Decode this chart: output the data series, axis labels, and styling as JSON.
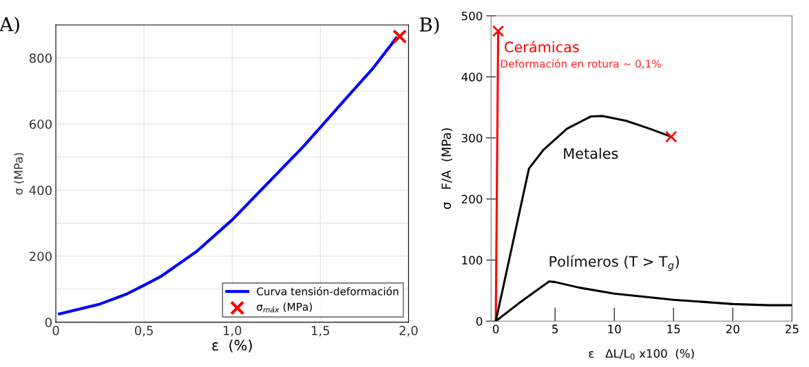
{
  "chart_data": [
    {
      "type": "line",
      "title": "A)",
      "xlabel": "ε  (%)",
      "ylabel": "σ (MPa)",
      "xlim": [
        0,
        2
      ],
      "xticks": [
        0,
        {
          "value": 0.5,
          "label": "0,5"
        },
        {
          "value": 1.0,
          "label": "1,0"
        },
        {
          "value": 1.5,
          "label": "1,5"
        },
        {
          "value": 2.0,
          "label": "2,0"
        }
      ],
      "ylim": [
        0,
        900
      ],
      "yticks": [
        0,
        {
          "value": 100,
          "label": null
        },
        200,
        {
          "value": 300,
          "label": null
        },
        400,
        {
          "value": 500,
          "label": null
        },
        600,
        {
          "value": 700,
          "label": null
        },
        800,
        {
          "value": 900,
          "label": null
        }
      ],
      "grid": true,
      "legend": "lower right",
      "series": [
        {
          "name": "Curva tensión-deformación",
          "color": "#0000ff",
          "marker": "none",
          "x": [
            0.02,
            0.25,
            0.4,
            0.5,
            0.6,
            0.8,
            1.0,
            1.2,
            1.4,
            1.5,
            1.6,
            1.8,
            1.93
          ],
          "values": [
            25,
            55,
            85,
            112,
            140,
            215,
            310,
            420,
            530,
            590,
            650,
            770,
            860
          ]
        },
        {
          "name": "σ$_{máx}$ (MPa)",
          "type": "scatter",
          "color": "#ff0000",
          "marker": "cross",
          "x": [
            1.95
          ],
          "values": [
            865
          ]
        }
      ]
    },
    {
      "type": "line",
      "title": "B)",
      "xlabel": "ε   ΔL/L$_{0}$ x100  (%)",
      "ylabel": "σ   F/A  (MPa)",
      "xlim": [
        -0.4,
        25
      ],
      "xticks": [
        0,
        5,
        10,
        15,
        20,
        25
      ],
      "ylim": [
        0,
        500
      ],
      "yticks": [
        0,
        100,
        200,
        300,
        400,
        500
      ],
      "grid": false,
      "legend": false,
      "annotations": [
        "Deformación en rotura ~ 0,1%"
      ],
      "series": [
        {
          "name": "Cerámicas",
          "color": "#ff0000",
          "marker": "none",
          "x": [
            0,
            0.2
          ],
          "values": [
            0,
            475
          ]
        },
        {
          "name": "Metales",
          "color": "#000000",
          "marker": "none",
          "x": [
            0,
            2.8,
            4,
            6,
            8,
            9,
            11,
            13,
            14.8
          ],
          "values": [
            0,
            250,
            280,
            315,
            335,
            336,
            328,
            315,
            302
          ]
        },
        {
          "name": "Polímeros (T > T$_{g}$)",
          "color": "#000000",
          "marker": "none",
          "x": [
            0,
            2,
            4.5,
            5,
            7,
            10,
            15,
            20,
            23,
            25
          ],
          "values": [
            0,
            30,
            65,
            64,
            55,
            45,
            35,
            28,
            26,
            26
          ]
        },
        {
          "type": "scatter",
          "color": "#ff0000",
          "marker": "cross",
          "x": [
            0.2,
            14.8
          ],
          "values": [
            475,
            302
          ]
        }
      ]
    }
  ]
}
